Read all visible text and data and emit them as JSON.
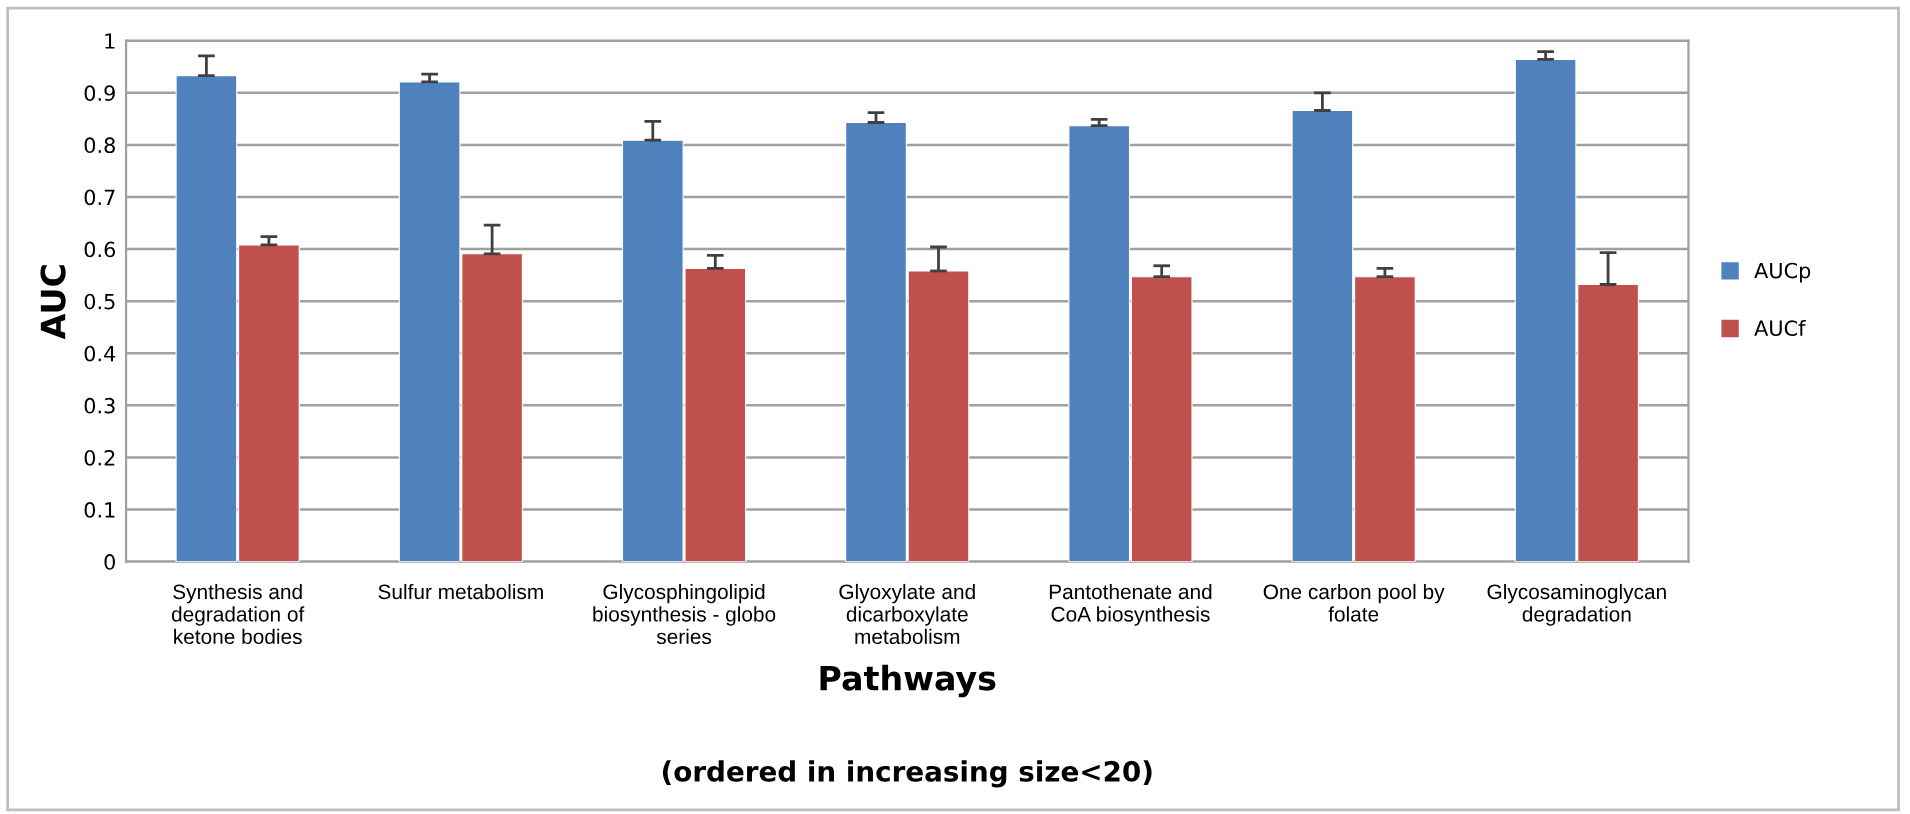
{
  "chart_data": {
    "type": "bar",
    "xlabel": "Pathways",
    "ylabel": "AUC",
    "annotations": [
      "(ordered in increasing size<20)"
    ],
    "categories": [
      "Synthesis and\ndegradation of\nketone bodies",
      "Sulfur metabolism",
      "Glycosphingolipid\nbiosynthesis - globo\nseries",
      "Glyoxylate and\ndicarboxylate\nmetabolism",
      "Pantothenate and\nCoA biosynthesis",
      "One carbon pool by\nfolate",
      "Glycosaminoglycan\ndegradation"
    ],
    "series": [
      {
        "name": "AUCp",
        "color": "#4f81bd",
        "values": [
          0.933,
          0.921,
          0.809,
          0.843,
          0.837,
          0.866,
          0.964
        ],
        "errors": [
          [
            0.933,
            0.971
          ],
          [
            0.921,
            0.936
          ],
          [
            0.809,
            0.845
          ],
          [
            0.843,
            0.862
          ],
          [
            0.837,
            0.849
          ],
          [
            0.866,
            0.9
          ],
          [
            0.964,
            0.979
          ]
        ]
      },
      {
        "name": "AUCf",
        "color": "#c0504d",
        "values": [
          0.608,
          0.591,
          0.563,
          0.558,
          0.547,
          0.547,
          0.532
        ],
        "errors": [
          [
            0.608,
            0.624
          ],
          [
            0.591,
            0.646
          ],
          [
            0.563,
            0.588
          ],
          [
            0.558,
            0.604
          ],
          [
            0.547,
            0.568
          ],
          [
            0.547,
            0.563
          ],
          [
            0.532,
            0.593
          ]
        ]
      }
    ],
    "ylim": [
      0,
      1
    ],
    "yticks": [
      0,
      0.1,
      0.2,
      0.3,
      0.4,
      0.5,
      0.6,
      0.7,
      0.8,
      0.9,
      1
    ],
    "grid": "y",
    "legend": "right"
  }
}
